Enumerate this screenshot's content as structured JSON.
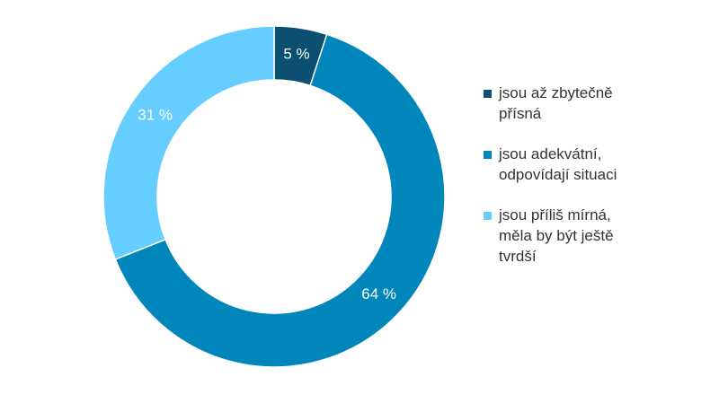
{
  "chart_data": {
    "type": "donut",
    "categories": [
      "jsou až zbytečně přísná",
      "jsou adekvátní, odpovídají situaci",
      "jsou příliš mírná, měla by být ještě tvrdší"
    ],
    "values": [
      5,
      64,
      31
    ],
    "value_labels": [
      "5 %",
      "64 %",
      "31 %"
    ],
    "colors": [
      "#0b5071",
      "#0086ba",
      "#66ceff"
    ],
    "legend": "right"
  }
}
